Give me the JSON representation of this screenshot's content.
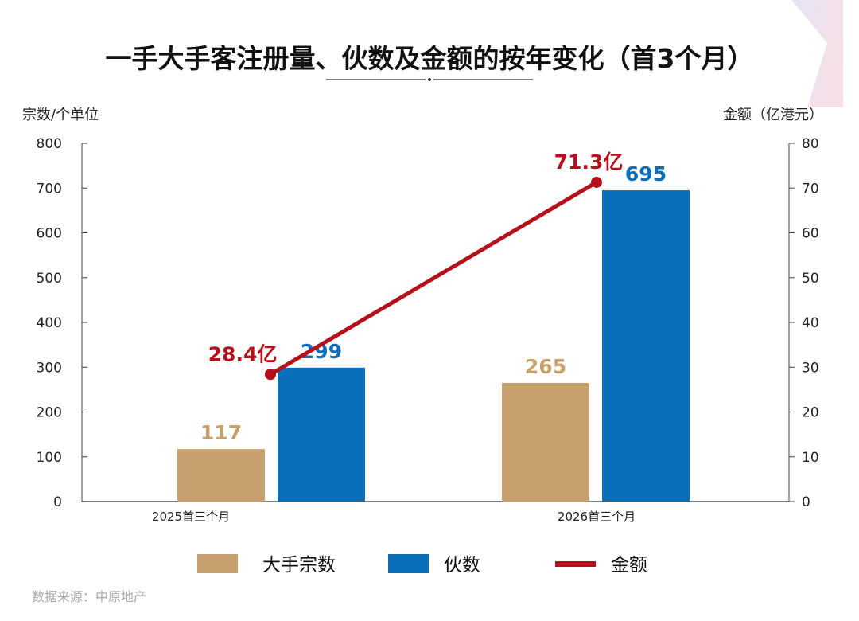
{
  "chart_data": {
    "type": "bar",
    "title": "一手大手客注册量、伙数及金额的按年变化（首3个月）",
    "ylabel_left": "宗数/个单位",
    "ylabel_right": "金额（亿港元）",
    "categories": [
      "2025首三个月",
      "2026首三个月"
    ],
    "ylim_left": [
      0,
      800
    ],
    "ylim_right": [
      0,
      80
    ],
    "yticks_left": [
      0,
      100,
      200,
      300,
      400,
      500,
      600,
      700,
      800
    ],
    "yticks_right": [
      0,
      10,
      20,
      30,
      40,
      50,
      60,
      70,
      80
    ],
    "series": [
      {
        "name": "大手宗数",
        "type": "bar",
        "axis": "left",
        "values": [
          117,
          265
        ],
        "labels": [
          "117",
          "265"
        ],
        "color": "#c8a06e"
      },
      {
        "name": "伙数",
        "type": "bar",
        "axis": "left",
        "values": [
          299,
          695
        ],
        "labels": [
          "299",
          "695"
        ],
        "color": "#0a6fbb"
      },
      {
        "name": "金额",
        "type": "line",
        "axis": "right",
        "values": [
          28.4,
          71.3
        ],
        "labels": [
          "28.4亿",
          "71.3亿"
        ],
        "color": "#b5111b"
      }
    ],
    "grid": false,
    "legend_placement": "bottom"
  },
  "source": "数据来源：中原地产"
}
